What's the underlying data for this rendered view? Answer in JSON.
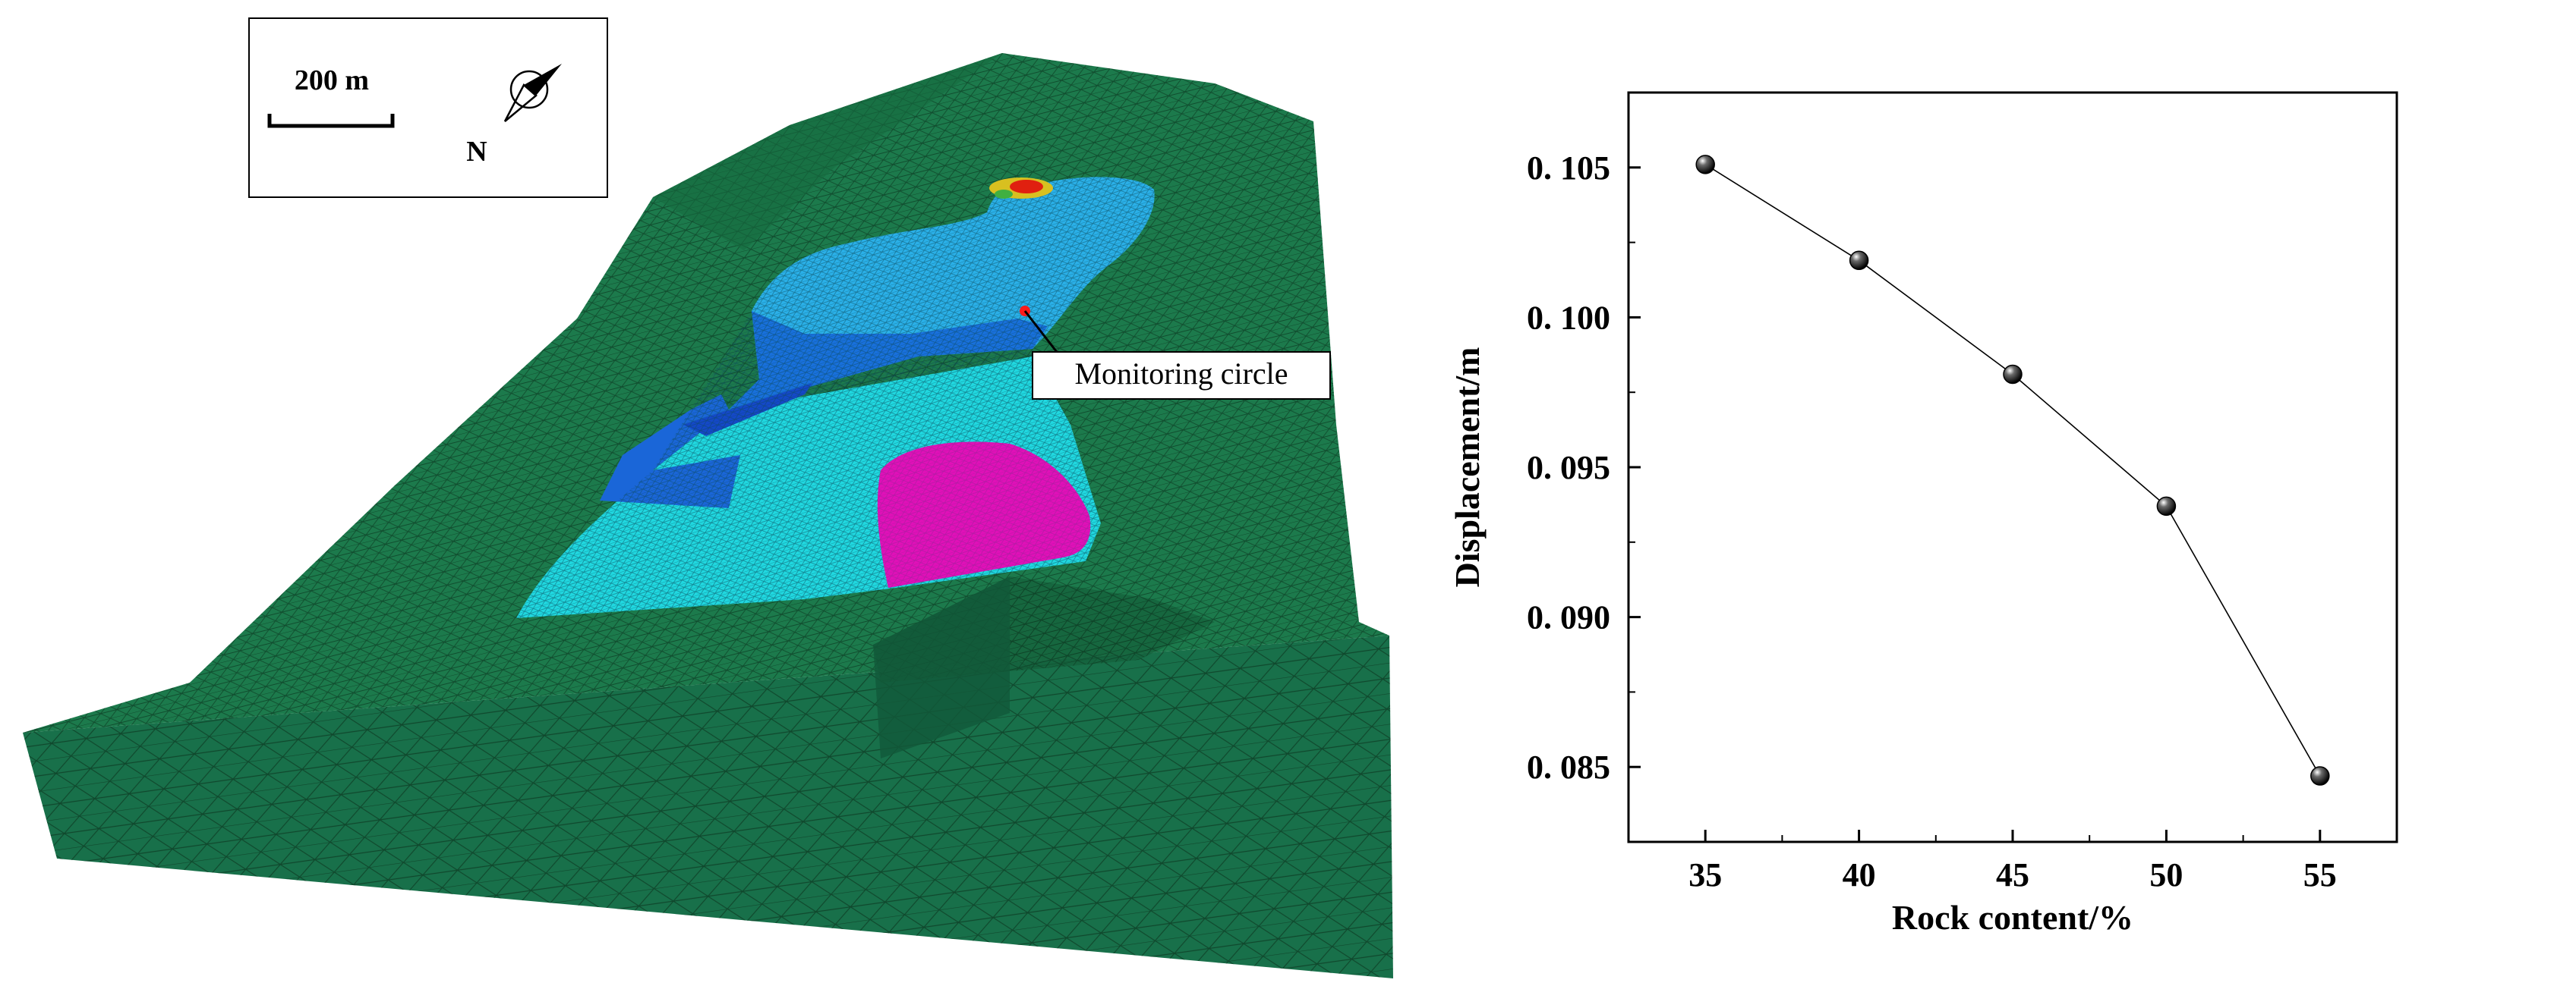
{
  "figure_left": {
    "scale_bar_label": "200 m",
    "north_label": "N",
    "monitoring_label": "Monitoring circle",
    "colors": {
      "terrain": "#1c7a4c",
      "mesh_line": "#0d3a22",
      "landslide_cyan": "#20d8e0",
      "landslide_light_blue": "#2ab0e8",
      "landslide_blue": "#1870dc",
      "landslide_dark_blue": "#1448c8",
      "landslide_magenta": "#e010b8",
      "hotspot_red": "#e02010",
      "hotspot_yellow": "#d8c020",
      "monitor_point": "#ff1a1a"
    }
  },
  "chart_data": {
    "type": "line",
    "xlabel": "Rock content/%",
    "ylabel": "Displacement/m",
    "x": [
      35,
      40,
      45,
      50,
      55
    ],
    "series": [
      {
        "values": [
          0.1051,
          0.1019,
          0.0981,
          0.0937,
          0.0847
        ]
      }
    ],
    "xlim": [
      32.5,
      57.5
    ],
    "ylim": [
      0.0825,
      0.1075
    ],
    "xticks": [
      35,
      40,
      45,
      50,
      55
    ],
    "xtick_labels": [
      "35",
      "40",
      "45",
      "50",
      "55"
    ],
    "yticks": [
      0.085,
      0.09,
      0.095,
      0.1,
      0.105
    ],
    "ytick_labels": [
      "0. 085",
      "0. 090",
      "0. 095",
      "0. 100",
      "0. 105"
    ],
    "grid": false,
    "marker": "sphere",
    "line_color": "#000000"
  }
}
